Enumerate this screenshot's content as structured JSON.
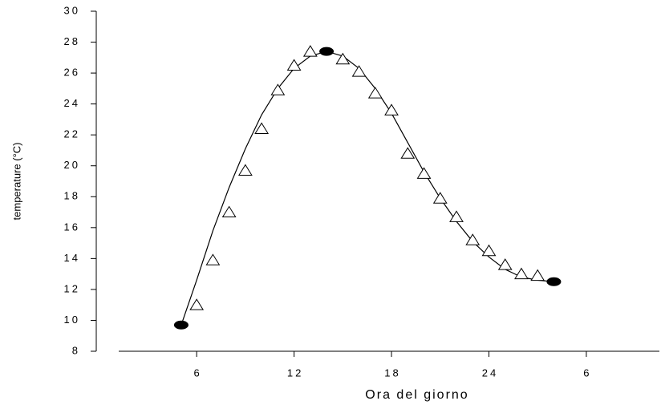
{
  "chart_data": {
    "type": "scatter",
    "x_label": "Ora del giorno",
    "y_label": "temperature (°C)",
    "xlim": [
      1.2,
      34.5
    ],
    "ylim": [
      8,
      30
    ],
    "xticks": [
      6,
      12,
      18,
      24,
      {
        "value": 30,
        "label": "6"
      }
    ],
    "yticks": [
      8,
      10,
      12,
      14,
      16,
      18,
      20,
      22,
      24,
      26,
      28,
      30
    ],
    "series": [
      {
        "marker": "line",
        "color": "#000000",
        "x": [
          5.05,
          6,
          7,
          8,
          9,
          10,
          11,
          12,
          13,
          14,
          15,
          16,
          17,
          18,
          19,
          20,
          21,
          22,
          23,
          24,
          25,
          26,
          27,
          28
        ],
        "values": [
          9.7,
          12.6,
          15.8,
          18.6,
          21.1,
          23.3,
          25.0,
          26.3,
          27.1,
          27.4,
          27.1,
          26.3,
          25.0,
          23.4,
          21.5,
          19.6,
          17.9,
          16.4,
          15.1,
          14.1,
          13.3,
          12.8,
          12.6,
          12.5
        ]
      },
      {
        "marker": "triangle",
        "color": "#000000",
        "x": [
          6,
          7,
          8,
          9,
          10,
          11,
          12,
          13,
          15,
          16,
          17,
          18,
          19,
          20,
          21,
          22,
          23,
          24,
          25,
          26,
          27
        ],
        "values": [
          11.0,
          13.9,
          17.0,
          19.7,
          22.4,
          24.9,
          26.5,
          27.4,
          26.9,
          26.1,
          24.7,
          23.6,
          20.8,
          19.5,
          17.9,
          16.7,
          15.2,
          14.5,
          13.6,
          13.0,
          12.9
        ]
      },
      {
        "marker": "circle",
        "color": "#000000",
        "x": [
          5.05,
          14,
          28
        ],
        "values": [
          9.7,
          27.4,
          12.5
        ]
      }
    ]
  }
}
